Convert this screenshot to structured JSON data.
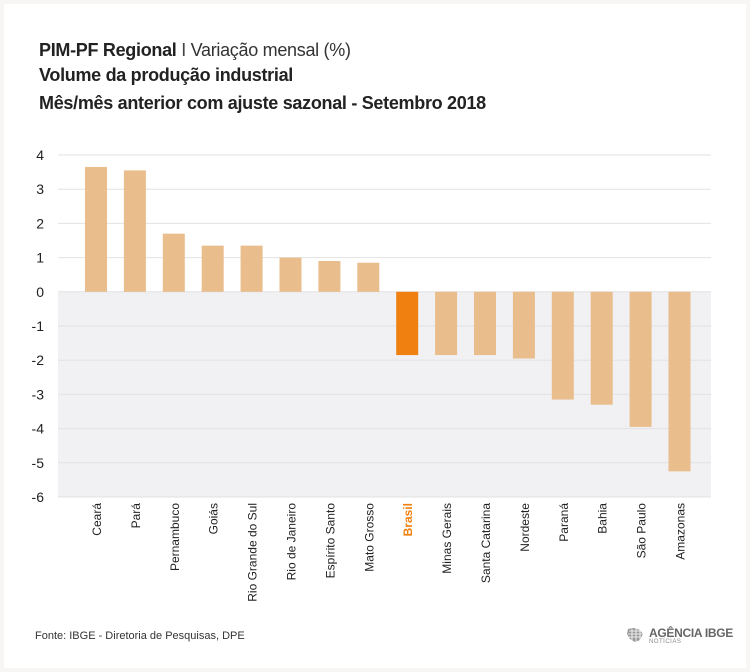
{
  "header": {
    "title_bold": "PIM-PF Regional",
    "title_separator": "I",
    "title_light": "Variação mensal (%)",
    "subtitle1": "Volume da produção industrial",
    "subtitle2": "Mês/mês anterior com ajuste sazonal - Setembro 2018"
  },
  "footer": {
    "source": "Fonte: IBGE - Diretoria de Pesquisas, DPE",
    "logo_text": "AGÊNCIA IBGE",
    "logo_sub": "NOTÍCIAS"
  },
  "colors": {
    "bar": "#e9bd8c",
    "highlight": "#f08010",
    "negative_band": "#f1f0f2",
    "grid": "#e2e2e2"
  },
  "chart_data": {
    "type": "bar",
    "title": "Volume da produção industrial - Mês/mês anterior com ajuste sazonal - Setembro 2018",
    "xlabel": "",
    "ylabel": "Variação mensal (%)",
    "ylim": [
      -6,
      4
    ],
    "yticks": [
      4,
      3,
      2,
      1,
      0,
      -1,
      -2,
      -3,
      -4,
      -5,
      -6
    ],
    "categories": [
      "Ceará",
      "Pará",
      "Pernambuco",
      "Goiás",
      "Rio Grande do Sul",
      "Rio de Janeiro",
      "Espírito Santo",
      "Mato Grosso",
      "Brasil",
      "Minas Gerais",
      "Santa Catarina",
      "Nordeste",
      "Paraná",
      "Bahia",
      "São Paulo",
      "Amazonas"
    ],
    "values": [
      3.65,
      3.55,
      1.7,
      1.35,
      1.35,
      1.0,
      0.9,
      0.85,
      -1.85,
      -1.85,
      -1.85,
      -1.95,
      -3.15,
      -3.3,
      -3.95,
      -5.25
    ],
    "highlight": "Brasil"
  }
}
